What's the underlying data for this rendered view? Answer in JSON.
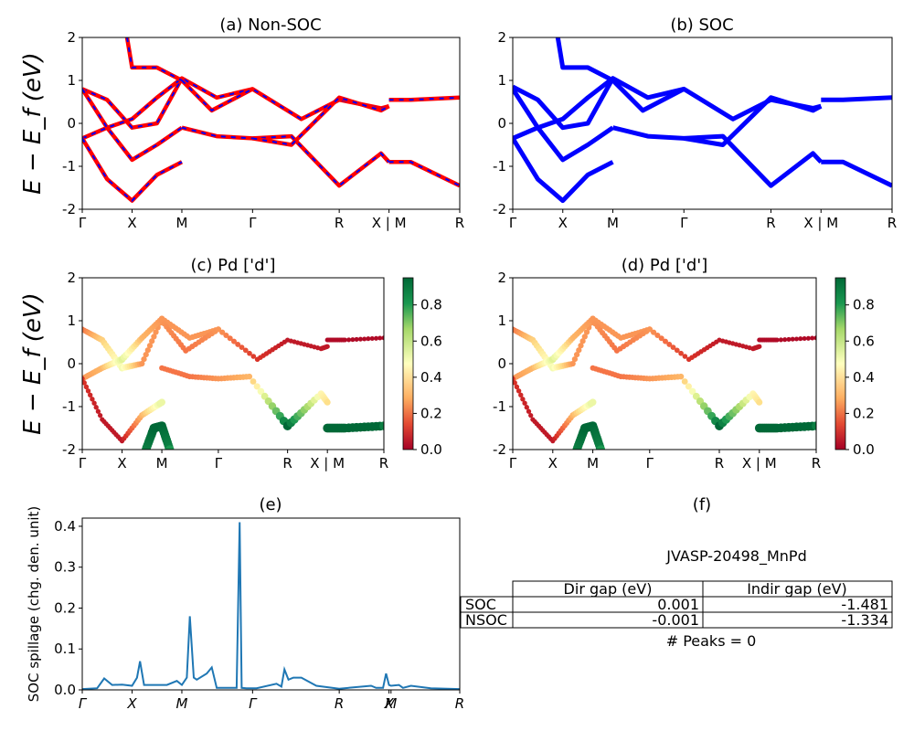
{
  "figure": {
    "panels": {
      "a": {
        "title": "(a) Non-SOC"
      },
      "b": {
        "title": "(b) SOC"
      },
      "c": {
        "title": "(c)  Pd ['d']"
      },
      "d": {
        "title": "(d) Pd ['d']"
      },
      "e": {
        "title": "(e)"
      },
      "f": {
        "title": "(f)"
      }
    },
    "band_ylabel": "E − E_f (eV)",
    "spillage_ylabel": "SOC spillage (chg. den. unit)",
    "kpath": [
      "Γ",
      "X",
      "M",
      "Γ",
      "R",
      "X | M",
      "R"
    ],
    "kpath_spillage": [
      "Γ",
      "X",
      "M",
      "Γ",
      "R",
      "X",
      "M",
      "R"
    ],
    "colorbar": {
      "ticks": [
        "0.0",
        "0.2",
        "0.4",
        "0.6",
        "0.8"
      ],
      "colormap": "RdYlGn"
    },
    "colors": {
      "nonsoc_line": "#ff0000",
      "nonsoc_dash": "#0000ff",
      "soc_line": "#0000ff",
      "spillage_line": "#1f77b4"
    }
  },
  "chart_data": [
    {
      "type": "line",
      "panel": "a",
      "title": "(a) Non-SOC",
      "ylabel": "E − E_f (eV)",
      "ylim": [
        -2,
        2
      ],
      "yticks": [
        -2,
        -1,
        0,
        1,
        2
      ],
      "xticks": [
        "Γ",
        "X",
        "M",
        "Γ",
        "R",
        "X | M",
        "R"
      ],
      "xtick_positions": [
        0,
        0.5,
        1.0,
        1.71,
        2.58,
        3.08,
        3.79
      ],
      "series": [
        {
          "x": [
            0,
            0.25,
            0.5,
            0.75,
            1.0
          ],
          "y": [
            0.8,
            0.55,
            -0.1,
            0.0,
            1.05
          ]
        },
        {
          "x": [
            0,
            0.25,
            0.5,
            0.75,
            1.0,
            1.35,
            1.71
          ],
          "y": [
            -0.35,
            -0.1,
            0.1,
            0.6,
            1.05,
            0.6,
            0.8
          ]
        },
        {
          "x": [
            0,
            0.25,
            0.5,
            0.75,
            1.0
          ],
          "y": [
            0.8,
            -0.1,
            -0.85,
            -0.5,
            -0.1
          ]
        },
        {
          "x": [
            0,
            0.25,
            0.5,
            0.75,
            1.0
          ],
          "y": [
            -0.35,
            -1.3,
            -1.8,
            -1.2,
            -0.9
          ]
        },
        {
          "x": [
            0.45,
            0.5,
            0.75,
            1.0
          ],
          "y": [
            2.0,
            1.3,
            1.3,
            1.0
          ]
        },
        {
          "x": [
            1.0,
            1.35,
            1.71,
            2.1,
            2.58,
            3.0,
            3.08
          ],
          "y": [
            -0.1,
            -0.3,
            -0.35,
            -0.3,
            -1.45,
            -0.7,
            -0.9
          ]
        },
        {
          "x": [
            1.0,
            1.3,
            1.71,
            2.2,
            2.58,
            3.0,
            3.08
          ],
          "y": [
            1.0,
            0.3,
            0.8,
            0.1,
            0.55,
            0.35,
            0.4
          ]
        },
        {
          "x": [
            1.71,
            2.1,
            2.58,
            3.0,
            3.08
          ],
          "y": [
            -0.35,
            -0.5,
            0.6,
            0.3,
            0.4
          ]
        },
        {
          "x": [
            3.08,
            3.3,
            3.79
          ],
          "y": [
            -0.9,
            -0.9,
            -1.45
          ]
        },
        {
          "x": [
            3.08,
            3.3,
            3.79
          ],
          "y": [
            0.55,
            0.55,
            0.6
          ]
        }
      ]
    },
    {
      "type": "line",
      "panel": "b",
      "title": "(b) SOC",
      "ylabel": "",
      "ylim": [
        -2,
        2
      ],
      "yticks": [
        -2,
        -1,
        0,
        1,
        2
      ],
      "xticks": [
        "Γ",
        "X",
        "M",
        "Γ",
        "R",
        "X | M",
        "R"
      ],
      "xtick_positions": [
        0,
        0.5,
        1.0,
        1.71,
        2.58,
        3.08,
        3.79
      ],
      "series": [
        {
          "x": [
            0,
            0.25,
            0.5,
            0.75,
            1.0
          ],
          "y": [
            0.85,
            0.55,
            -0.1,
            0.0,
            1.05
          ]
        },
        {
          "x": [
            0,
            0.25,
            0.5,
            0.75,
            1.0,
            1.35,
            1.71
          ],
          "y": [
            -0.35,
            -0.1,
            0.1,
            0.6,
            1.05,
            0.6,
            0.8
          ]
        },
        {
          "x": [
            0,
            0.25,
            0.5,
            0.75,
            1.0
          ],
          "y": [
            0.8,
            -0.1,
            -0.85,
            -0.5,
            -0.1
          ]
        },
        {
          "x": [
            0,
            0.25,
            0.5,
            0.75,
            1.0
          ],
          "y": [
            -0.35,
            -1.3,
            -1.8,
            -1.2,
            -0.9
          ]
        },
        {
          "x": [
            0.45,
            0.5,
            0.75,
            1.0
          ],
          "y": [
            2.0,
            1.3,
            1.3,
            1.0
          ]
        },
        {
          "x": [
            1.0,
            1.35,
            1.71,
            2.1,
            2.58,
            3.0,
            3.08
          ],
          "y": [
            -0.1,
            -0.3,
            -0.35,
            -0.3,
            -1.45,
            -0.7,
            -0.9
          ]
        },
        {
          "x": [
            1.0,
            1.3,
            1.71,
            2.2,
            2.58,
            3.0,
            3.08
          ],
          "y": [
            1.0,
            0.3,
            0.8,
            0.1,
            0.55,
            0.35,
            0.4
          ]
        },
        {
          "x": [
            1.71,
            2.1,
            2.58,
            3.0,
            3.08
          ],
          "y": [
            -0.35,
            -0.5,
            0.6,
            0.3,
            0.4
          ]
        },
        {
          "x": [
            3.08,
            3.3,
            3.79
          ],
          "y": [
            -0.9,
            -0.9,
            -1.45
          ]
        },
        {
          "x": [
            3.08,
            3.3,
            3.79
          ],
          "y": [
            0.55,
            0.55,
            0.6
          ]
        }
      ]
    },
    {
      "type": "scatter",
      "panel": "c",
      "title": "(c)  Pd ['d']",
      "ylabel": "E − E_f (eV)",
      "ylim": [
        -2,
        2
      ],
      "yticks": [
        -2,
        -1,
        0,
        1,
        2
      ],
      "colorbar_range": [
        0,
        0.95
      ],
      "xticks": [
        "Γ",
        "X",
        "M",
        "Γ",
        "R",
        "X | M",
        "R"
      ],
      "xtick_positions": [
        0,
        0.5,
        1.0,
        1.71,
        2.58,
        3.08,
        3.79
      ],
      "series": [
        {
          "x": [
            0,
            0.25,
            0.5,
            0.75,
            1.0
          ],
          "y": [
            0.8,
            0.55,
            -0.1,
            0.0,
            1.05
          ],
          "weight": [
            0.2,
            0.35,
            0.5,
            0.25,
            0.25
          ]
        },
        {
          "x": [
            0,
            0.25,
            0.5,
            0.75,
            1.0,
            1.35,
            1.71
          ],
          "y": [
            -0.35,
            -0.1,
            0.1,
            0.6,
            1.05,
            0.6,
            0.8
          ],
          "weight": [
            0.25,
            0.3,
            0.55,
            0.3,
            0.25,
            0.25,
            0.25
          ]
        },
        {
          "x": [
            0,
            0.25,
            0.5,
            0.75,
            1.0
          ],
          "y": [
            -0.35,
            -1.3,
            -1.8,
            -1.2,
            -0.9
          ],
          "weight": [
            0.1,
            0.05,
            0.05,
            0.3,
            0.55
          ]
        },
        {
          "x": [
            1.0,
            1.35,
            1.71,
            2.1,
            2.58,
            3.0,
            3.08
          ],
          "y": [
            -0.1,
            -0.3,
            -0.35,
            -0.3,
            -1.45,
            -0.7,
            -0.9
          ],
          "weight": [
            0.2,
            0.2,
            0.25,
            0.3,
            0.95,
            0.45,
            0.4
          ]
        },
        {
          "x": [
            1.0,
            1.3,
            1.71,
            2.2,
            2.58,
            3.0,
            3.08
          ],
          "y": [
            1.0,
            0.3,
            0.8,
            0.1,
            0.55,
            0.35,
            0.4
          ],
          "weight": [
            0.25,
            0.2,
            0.25,
            0.1,
            0.05,
            0.05,
            0.05
          ]
        },
        {
          "x": [
            0.8,
            0.9,
            1.0,
            1.1
          ],
          "y": [
            -2.0,
            -1.5,
            -1.45,
            -2.0
          ],
          "weight": [
            0.9,
            0.95,
            0.95,
            0.9
          ]
        },
        {
          "x": [
            3.08,
            3.3,
            3.79
          ],
          "y": [
            -1.5,
            -1.5,
            -1.45
          ],
          "weight": [
            0.95,
            0.95,
            0.95
          ]
        },
        {
          "x": [
            3.08,
            3.3,
            3.79
          ],
          "y": [
            0.55,
            0.55,
            0.6
          ],
          "weight": [
            0.02,
            0.02,
            0.02
          ]
        }
      ]
    },
    {
      "type": "scatter",
      "panel": "d",
      "title": "(d) Pd ['d']",
      "ylabel": "",
      "ylim": [
        -2,
        2
      ],
      "yticks": [
        -2,
        -1,
        0,
        1,
        2
      ],
      "colorbar_range": [
        0,
        0.95
      ],
      "xticks": [
        "Γ",
        "X",
        "M",
        "Γ",
        "R",
        "X | M",
        "R"
      ],
      "xtick_positions": [
        0,
        0.5,
        1.0,
        1.71,
        2.58,
        3.08,
        3.79
      ],
      "series": [
        {
          "x": [
            0,
            0.25,
            0.5,
            0.75,
            1.0
          ],
          "y": [
            0.8,
            0.55,
            -0.1,
            0.0,
            1.05
          ],
          "weight": [
            0.2,
            0.35,
            0.5,
            0.25,
            0.25
          ]
        },
        {
          "x": [
            0,
            0.25,
            0.5,
            0.75,
            1.0,
            1.35,
            1.71
          ],
          "y": [
            -0.35,
            -0.1,
            0.1,
            0.6,
            1.05,
            0.6,
            0.8
          ],
          "weight": [
            0.25,
            0.3,
            0.55,
            0.3,
            0.25,
            0.25,
            0.25
          ]
        },
        {
          "x": [
            0,
            0.25,
            0.5,
            0.75,
            1.0
          ],
          "y": [
            -0.35,
            -1.3,
            -1.8,
            -1.2,
            -0.9
          ],
          "weight": [
            0.1,
            0.05,
            0.05,
            0.3,
            0.55
          ]
        },
        {
          "x": [
            1.0,
            1.35,
            1.71,
            2.1,
            2.58,
            3.0,
            3.08
          ],
          "y": [
            -0.1,
            -0.3,
            -0.35,
            -0.3,
            -1.45,
            -0.7,
            -0.9
          ],
          "weight": [
            0.2,
            0.2,
            0.25,
            0.3,
            0.95,
            0.45,
            0.4
          ]
        },
        {
          "x": [
            1.0,
            1.3,
            1.71,
            2.2,
            2.58,
            3.0,
            3.08
          ],
          "y": [
            1.0,
            0.3,
            0.8,
            0.1,
            0.55,
            0.35,
            0.4
          ],
          "weight": [
            0.25,
            0.2,
            0.25,
            0.1,
            0.05,
            0.05,
            0.05
          ]
        },
        {
          "x": [
            0.8,
            0.9,
            1.0,
            1.1
          ],
          "y": [
            -2.0,
            -1.5,
            -1.45,
            -2.0
          ],
          "weight": [
            0.9,
            0.95,
            0.95,
            0.9
          ]
        },
        {
          "x": [
            3.08,
            3.3,
            3.79
          ],
          "y": [
            -1.5,
            -1.5,
            -1.45
          ],
          "weight": [
            0.95,
            0.95,
            0.95
          ]
        },
        {
          "x": [
            3.08,
            3.3,
            3.79
          ],
          "y": [
            0.55,
            0.55,
            0.6
          ],
          "weight": [
            0.02,
            0.02,
            0.02
          ]
        }
      ]
    },
    {
      "type": "line",
      "panel": "e",
      "title": "(e)",
      "ylabel": "SOC spillage (chg. den. unit)",
      "ylim": [
        0,
        0.42
      ],
      "yticks": [
        0.0,
        0.1,
        0.2,
        0.3,
        0.4
      ],
      "xticks": [
        "Γ",
        "X",
        "M",
        "Γ",
        "R",
        "X",
        "M",
        "R"
      ],
      "xtick_positions": [
        0,
        0.5,
        1.0,
        1.71,
        2.58,
        3.08,
        3.1,
        3.79
      ],
      "x": [
        0,
        0.15,
        0.22,
        0.3,
        0.4,
        0.5,
        0.55,
        0.58,
        0.62,
        0.7,
        0.85,
        0.95,
        1.0,
        1.05,
        1.08,
        1.12,
        1.15,
        1.25,
        1.3,
        1.35,
        1.55,
        1.58,
        1.6,
        1.65,
        1.75,
        1.95,
        2.0,
        2.03,
        2.07,
        2.12,
        2.2,
        2.35,
        2.58,
        2.9,
        2.95,
        3.02,
        3.05,
        3.08,
        3.1,
        3.18,
        3.22,
        3.3,
        3.5,
        3.79
      ],
      "y": [
        0.002,
        0.004,
        0.028,
        0.012,
        0.013,
        0.01,
        0.03,
        0.07,
        0.012,
        0.012,
        0.012,
        0.022,
        0.012,
        0.03,
        0.18,
        0.03,
        0.025,
        0.04,
        0.055,
        0.005,
        0.005,
        0.41,
        0.005,
        0.004,
        0.004,
        0.015,
        0.008,
        0.05,
        0.025,
        0.03,
        0.03,
        0.01,
        0.003,
        0.01,
        0.005,
        0.005,
        0.04,
        0.012,
        0.01,
        0.012,
        0.005,
        0.01,
        0.004,
        0.002
      ]
    }
  ],
  "table": {
    "material": "JVASP-20498_MnPd",
    "columns": [
      "Dir gap (eV)",
      "Indir gap (eV)"
    ],
    "rows": [
      {
        "label": "SOC",
        "dir": "0.001",
        "indir": "-1.481"
      },
      {
        "label": "NSOC",
        "dir": "-0.001",
        "indir": "-1.334"
      }
    ],
    "peaks": "# Peaks = 0"
  }
}
